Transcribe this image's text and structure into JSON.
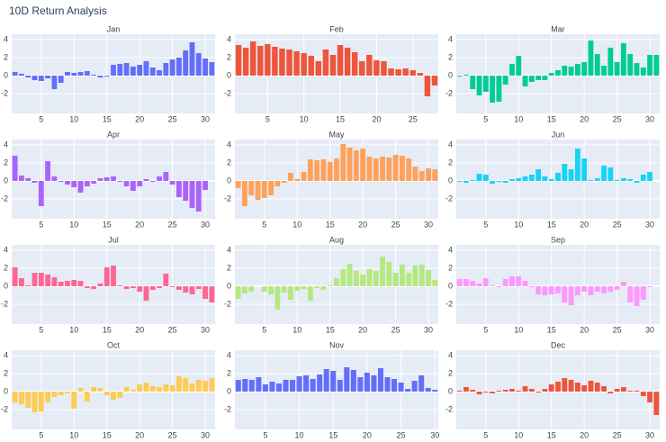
{
  "title": "10D Return Analysis",
  "chart_data": [
    {
      "type": "bar",
      "title": "Jan",
      "color": "#636efa",
      "x": [
        1,
        2,
        3,
        4,
        5,
        6,
        7,
        8,
        9,
        10,
        11,
        12,
        13,
        14,
        15,
        16,
        17,
        18,
        19,
        20,
        21,
        22,
        23,
        24,
        25,
        26,
        27,
        28,
        29,
        30,
        31
      ],
      "values": [
        0.4,
        0.2,
        -0.2,
        -0.5,
        -0.6,
        -0.3,
        -1.5,
        -0.8,
        0.4,
        0.3,
        0.4,
        0.5,
        0.1,
        -0.2,
        -0.1,
        1.2,
        1.3,
        1.4,
        1.0,
        1.2,
        1.6,
        0.9,
        0.6,
        1.4,
        1.8,
        2.0,
        2.8,
        3.7,
        2.5,
        1.9,
        1.5
      ],
      "xlim": [
        0.5,
        31.5
      ],
      "xticks": [
        5,
        10,
        15,
        20,
        25,
        30
      ],
      "ylim": [
        -4.2,
        4.6
      ],
      "yticks": [
        -2,
        0,
        2,
        4
      ],
      "grid": true
    },
    {
      "type": "bar",
      "title": "Feb",
      "color": "#EF553B",
      "x": [
        1,
        2,
        3,
        4,
        5,
        6,
        7,
        8,
        9,
        10,
        11,
        12,
        13,
        14,
        15,
        16,
        17,
        18,
        19,
        20,
        21,
        22,
        23,
        24,
        25,
        26,
        27,
        28
      ],
      "values": [
        3.4,
        3.1,
        3.8,
        3.3,
        3.5,
        3.2,
        3.0,
        2.9,
        2.7,
        2.5,
        2.2,
        1.6,
        2.9,
        2.3,
        3.4,
        3.1,
        2.6,
        1.6,
        2.3,
        1.7,
        1.6,
        0.8,
        0.7,
        0.8,
        0.6,
        0.3,
        -2.3,
        -1.1
      ],
      "xlim": [
        0.5,
        28.5
      ],
      "xticks": [
        5,
        10,
        15,
        20,
        25
      ],
      "ylim": [
        -4.2,
        4.6
      ],
      "yticks": [
        -2,
        0,
        2,
        4
      ],
      "grid": true
    },
    {
      "type": "bar",
      "title": "Mar",
      "color": "#00cc96",
      "x": [
        1,
        2,
        3,
        4,
        5,
        6,
        7,
        8,
        9,
        10,
        11,
        12,
        13,
        14,
        15,
        16,
        17,
        18,
        19,
        20,
        21,
        22,
        23,
        24,
        25,
        26,
        27,
        28,
        29,
        30,
        31
      ],
      "values": [
        -0.1,
        0.1,
        -1.5,
        -2.2,
        -1.8,
        -3.0,
        -2.9,
        -1.0,
        1.3,
        2.2,
        -1.2,
        -0.7,
        -0.5,
        -0.5,
        0.3,
        0.6,
        1.1,
        1.0,
        1.3,
        1.5,
        3.9,
        2.4,
        1.1,
        3.1,
        1.5,
        3.6,
        2.4,
        1.4,
        0.9,
        2.3,
        2.3
      ],
      "xlim": [
        0.5,
        31.5
      ],
      "xticks": [
        5,
        10,
        15,
        20,
        25,
        30
      ],
      "ylim": [
        -4.2,
        4.6
      ],
      "yticks": [
        -2,
        0,
        2,
        4
      ],
      "grid": true
    },
    {
      "type": "bar",
      "title": "Apr",
      "color": "#ab63fa",
      "x": [
        1,
        2,
        3,
        4,
        5,
        6,
        7,
        8,
        9,
        10,
        11,
        12,
        13,
        14,
        15,
        16,
        17,
        18,
        19,
        20,
        21,
        22,
        23,
        24,
        25,
        26,
        27,
        28,
        29,
        30
      ],
      "values": [
        2.8,
        0.6,
        0.3,
        -0.2,
        -2.8,
        2.2,
        0.5,
        -0.1,
        -0.4,
        -0.7,
        -1.3,
        -0.6,
        -0.3,
        0.3,
        0.4,
        0.5,
        -0.1,
        -0.6,
        -1.1,
        -0.6,
        0.2,
        -0.1,
        0.5,
        1.0,
        -0.4,
        -1.8,
        -2.2,
        -3.0,
        -3.4,
        -1.0
      ],
      "xlim": [
        0.5,
        31.5
      ],
      "xticks": [
        5,
        10,
        15,
        20,
        25,
        30
      ],
      "ylim": [
        -4.2,
        4.6
      ],
      "yticks": [
        -2,
        0,
        2,
        4
      ],
      "grid": true
    },
    {
      "type": "bar",
      "title": "May",
      "color": "#FFA15A",
      "x": [
        1,
        2,
        3,
        4,
        5,
        6,
        7,
        8,
        9,
        10,
        11,
        12,
        13,
        14,
        15,
        16,
        17,
        18,
        19,
        20,
        21,
        22,
        23,
        24,
        25,
        26,
        27,
        28,
        29,
        30,
        31
      ],
      "values": [
        -0.8,
        -2.8,
        -1.6,
        -2.1,
        -1.9,
        -1.6,
        -0.6,
        -0.2,
        0.9,
        0.2,
        1.0,
        2.4,
        2.3,
        2.4,
        2.1,
        2.5,
        4.1,
        3.7,
        3.4,
        3.6,
        2.7,
        2.5,
        2.7,
        2.6,
        2.9,
        2.8,
        2.5,
        1.6,
        1.1,
        1.4,
        1.3
      ],
      "xlim": [
        0.5,
        31.5
      ],
      "xticks": [
        5,
        10,
        15,
        20,
        25,
        30
      ],
      "ylim": [
        -4.2,
        4.6
      ],
      "yticks": [
        -2,
        0,
        2,
        4
      ],
      "grid": true
    },
    {
      "type": "bar",
      "title": "Jun",
      "color": "#19d3f3",
      "x": [
        1,
        2,
        3,
        4,
        5,
        6,
        7,
        8,
        9,
        10,
        11,
        12,
        13,
        14,
        15,
        16,
        17,
        18,
        19,
        20,
        21,
        22,
        23,
        24,
        25,
        26,
        27,
        28,
        29,
        30
      ],
      "values": [
        -0.1,
        -0.2,
        0.1,
        0.8,
        0.7,
        -0.3,
        -0.1,
        -0.2,
        0.2,
        0.3,
        0.5,
        0.7,
        1.3,
        0.5,
        0.2,
        0.9,
        1.9,
        1.3,
        3.6,
        2.5,
        0.1,
        0.3,
        1.7,
        1.5,
        0.1,
        0.3,
        0.2,
        -0.2,
        0.7,
        1.0
      ],
      "xlim": [
        0.5,
        31.5
      ],
      "xticks": [
        5,
        10,
        15,
        20,
        25,
        30
      ],
      "ylim": [
        -4.2,
        4.6
      ],
      "yticks": [
        -2,
        0,
        2,
        4
      ],
      "grid": true
    },
    {
      "type": "bar",
      "title": "Jul",
      "color": "#FF6692",
      "x": [
        1,
        2,
        3,
        4,
        5,
        6,
        7,
        8,
        9,
        10,
        11,
        12,
        13,
        14,
        15,
        16,
        17,
        18,
        19,
        20,
        21,
        22,
        23,
        24,
        25,
        26,
        27,
        28,
        29,
        30,
        31
      ],
      "values": [
        2.1,
        0.9,
        0.1,
        1.5,
        1.5,
        1.3,
        1.0,
        0.5,
        0.6,
        0.7,
        0.6,
        -0.2,
        -0.3,
        0.3,
        2.1,
        2.3,
        0.1,
        -0.3,
        -0.2,
        -0.6,
        -1.6,
        -0.4,
        -0.2,
        1.4,
        -0.1,
        -0.4,
        -0.7,
        -0.9,
        -0.3,
        -1.4,
        -1.8
      ],
      "xlim": [
        0.5,
        31.5
      ],
      "xticks": [
        5,
        10,
        15,
        20,
        25,
        30
      ],
      "ylim": [
        -4.2,
        4.6
      ],
      "yticks": [
        -2,
        0,
        2,
        4
      ],
      "grid": true
    },
    {
      "type": "bar",
      "title": "Aug",
      "color": "#B6E880",
      "x": [
        1,
        2,
        3,
        4,
        5,
        6,
        7,
        8,
        9,
        10,
        11,
        12,
        13,
        14,
        15,
        16,
        17,
        18,
        19,
        20,
        21,
        22,
        23,
        24,
        25,
        26,
        27,
        28,
        29,
        30,
        31
      ],
      "values": [
        -1.4,
        -0.8,
        -0.6,
        0.0,
        -0.6,
        -0.9,
        -2.6,
        -0.7,
        -1.5,
        -0.5,
        -0.3,
        -1.6,
        -0.2,
        -0.4,
        0.1,
        0.9,
        1.9,
        2.5,
        1.7,
        1.3,
        1.9,
        1.7,
        3.3,
        2.7,
        1.5,
        2.4,
        1.5,
        2.3,
        2.4,
        1.8,
        0.7
      ],
      "xlim": [
        0.5,
        31.5
      ],
      "xticks": [
        5,
        10,
        15,
        20,
        25,
        30
      ],
      "ylim": [
        -4.2,
        4.6
      ],
      "yticks": [
        -2,
        0,
        2,
        4
      ],
      "grid": true
    },
    {
      "type": "bar",
      "title": "Sep",
      "color": "#FF97FF",
      "x": [
        1,
        2,
        3,
        4,
        5,
        6,
        7,
        8,
        9,
        10,
        11,
        12,
        13,
        14,
        15,
        16,
        17,
        18,
        19,
        20,
        21,
        22,
        23,
        24,
        25,
        26,
        27,
        28,
        29,
        30
      ],
      "values": [
        0.8,
        0.8,
        0.6,
        0.3,
        0.9,
        0.1,
        -0.1,
        0.8,
        1.1,
        1.1,
        0.6,
        -0.1,
        -0.9,
        -1.0,
        -0.9,
        -0.8,
        -1.8,
        -2.1,
        -1.0,
        -0.6,
        -1.0,
        -0.6,
        -0.8,
        -0.6,
        -0.4,
        0.5,
        -1.8,
        -2.2,
        -1.5,
        -0.1
      ],
      "xlim": [
        0.5,
        31.5
      ],
      "xticks": [
        5,
        10,
        15,
        20,
        25,
        30
      ],
      "ylim": [
        -4.2,
        4.6
      ],
      "yticks": [
        -2,
        0,
        2,
        4
      ],
      "grid": true
    },
    {
      "type": "bar",
      "title": "Oct",
      "color": "#FECB52",
      "x": [
        1,
        2,
        3,
        4,
        5,
        6,
        7,
        8,
        9,
        10,
        11,
        12,
        13,
        14,
        15,
        16,
        17,
        18,
        19,
        20,
        21,
        22,
        23,
        24,
        25,
        26,
        27,
        28,
        29,
        30,
        31
      ],
      "values": [
        -1.2,
        -1.4,
        -1.8,
        -2.3,
        -2.2,
        -1.2,
        -0.6,
        -0.4,
        -0.2,
        -1.9,
        0.4,
        -1.1,
        0.5,
        0.4,
        -0.4,
        -0.9,
        -0.7,
        0.5,
        0.2,
        0.8,
        1.0,
        0.6,
        0.5,
        0.8,
        0.7,
        1.7,
        1.5,
        0.9,
        1.3,
        1.2,
        1.5
      ],
      "xlim": [
        0.5,
        31.5
      ],
      "xticks": [
        5,
        10,
        15,
        20,
        25,
        30
      ],
      "ylim": [
        -4.2,
        4.6
      ],
      "yticks": [
        -2,
        0,
        2,
        4
      ],
      "grid": true
    },
    {
      "type": "bar",
      "title": "Nov",
      "color": "#636efa",
      "x": [
        1,
        2,
        3,
        4,
        5,
        6,
        7,
        8,
        9,
        10,
        11,
        12,
        13,
        14,
        15,
        16,
        17,
        18,
        19,
        20,
        21,
        22,
        23,
        24,
        25,
        26,
        27,
        28,
        29,
        30
      ],
      "values": [
        1.3,
        1.4,
        1.3,
        1.6,
        0.8,
        1.1,
        0.9,
        1.3,
        1.3,
        1.7,
        1.8,
        1.4,
        1.9,
        2.5,
        2.3,
        1.3,
        2.7,
        2.4,
        1.6,
        2.1,
        1.8,
        2.6,
        1.6,
        1.4,
        1.0,
        0.3,
        1.2,
        1.8,
        0.4,
        0.2
      ],
      "xlim": [
        0.5,
        30.5
      ],
      "xticks": [
        5,
        10,
        15,
        20,
        25,
        30
      ],
      "ylim": [
        -4.2,
        4.6
      ],
      "yticks": [
        -2,
        0,
        2,
        4
      ],
      "grid": true
    },
    {
      "type": "bar",
      "title": "Dec",
      "color": "#EF553B",
      "x": [
        1,
        2,
        3,
        4,
        5,
        6,
        7,
        8,
        9,
        10,
        11,
        12,
        13,
        14,
        15,
        16,
        17,
        18,
        19,
        20,
        21,
        22,
        23,
        24,
        25,
        26,
        27,
        28,
        29,
        30,
        31
      ],
      "values": [
        0.1,
        0.5,
        0.2,
        -0.3,
        -0.1,
        -0.2,
        0.1,
        0.2,
        0.3,
        0.1,
        0.6,
        0.3,
        -0.1,
        0.3,
        0.8,
        1.1,
        1.5,
        1.3,
        1.0,
        0.7,
        1.2,
        1.0,
        0.6,
        -0.2,
        0.3,
        0.5,
        0.1,
        0.1,
        -0.5,
        -1.2,
        -2.6
      ],
      "xlim": [
        0.5,
        31.5
      ],
      "xticks": [
        5,
        10,
        15,
        20,
        25,
        30
      ],
      "ylim": [
        -4.2,
        4.6
      ],
      "yticks": [
        -2,
        0,
        2,
        4
      ],
      "grid": true
    }
  ]
}
